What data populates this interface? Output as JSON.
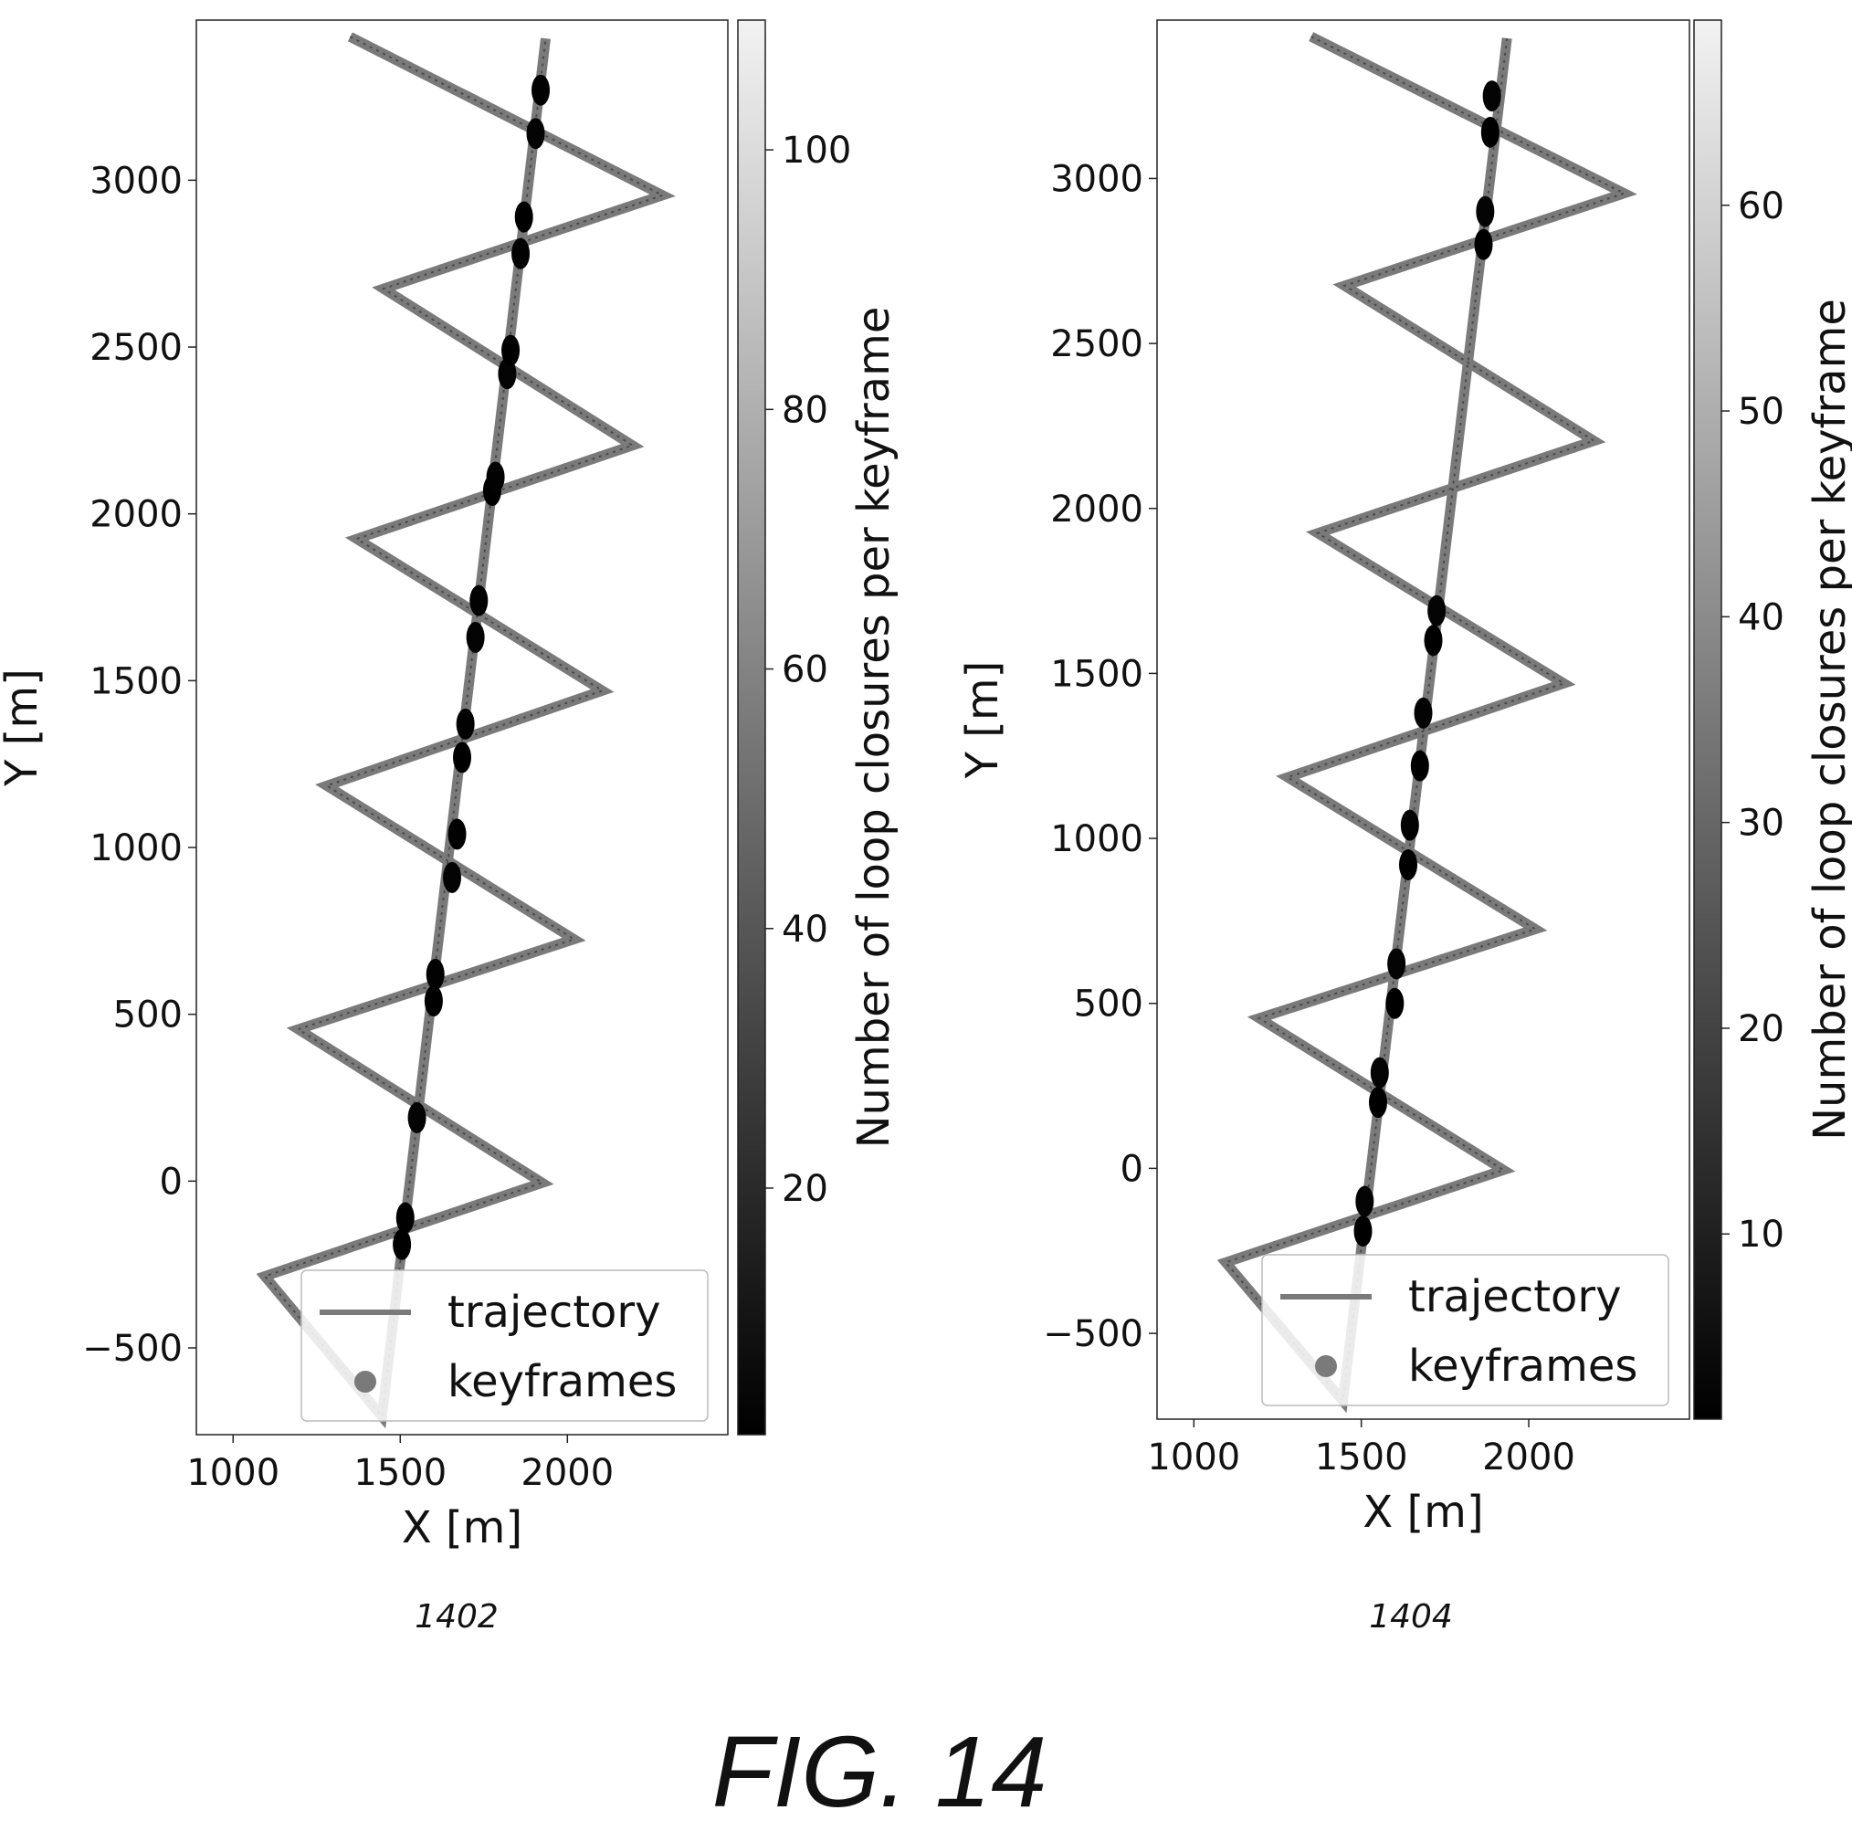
{
  "figure_caption": "FIG. 14",
  "chart_data": [
    {
      "type": "scatter",
      "panel_label": "1402",
      "xlabel": "X [m]",
      "ylabel": "Y [m]",
      "xlim": [
        890,
        2480
      ],
      "ylim": [
        -760,
        3480
      ],
      "xticks": [
        1000,
        1500,
        2000
      ],
      "xtick_labels": [
        "1000",
        "1500",
        "2000"
      ],
      "yticks": [
        -500,
        0,
        500,
        1000,
        1500,
        2000,
        2500,
        3000
      ],
      "ytick_labels": [
        "−500",
        "0",
        "500",
        "1000",
        "1500",
        "2000",
        "2500",
        "3000"
      ],
      "grid": false,
      "legend": {
        "placement": "lower-center",
        "entries": [
          "trajectory",
          "keyframes"
        ]
      },
      "colorbar": {
        "label": "Number of loop closures per keyframe",
        "range": [
          1,
          110
        ],
        "ticks": [
          20,
          40,
          60,
          80,
          100
        ],
        "tick_labels": [
          "20",
          "40",
          "60",
          "80",
          "100"
        ],
        "colormap": "gray"
      },
      "series": [
        {
          "name": "trajectory",
          "x": [
            1350,
            2285,
            1450,
            2195,
            1370,
            2105,
            1280,
            2020,
            1195,
            1925,
            1095,
            1445,
            1935
          ],
          "y": [
            3430,
            2955,
            2675,
            2205,
            1925,
            1470,
            1185,
            725,
            455,
            -5,
            -285,
            -705,
            3425
          ]
        },
        {
          "name": "keyframes",
          "x": [
            1505,
            1515,
            1550,
            1600,
            1605,
            1655,
            1670,
            1685,
            1695,
            1725,
            1735,
            1775,
            1785,
            1820,
            1830,
            1860,
            1870,
            1905,
            1920
          ],
          "y": [
            -190,
            -110,
            190,
            540,
            620,
            910,
            1040,
            1270,
            1370,
            1630,
            1740,
            2070,
            2110,
            2420,
            2490,
            2780,
            2890,
            3140,
            3270
          ],
          "color_value": [
            1,
            1,
            3,
            1,
            2,
            3,
            2,
            1,
            2,
            3,
            2,
            1,
            2,
            3,
            1,
            2,
            1,
            3,
            2
          ]
        }
      ]
    },
    {
      "type": "scatter",
      "panel_label": "1404",
      "xlabel": "X [m]",
      "ylabel": "Y [m]",
      "xlim": [
        890,
        2480
      ],
      "ylim": [
        -760,
        3480
      ],
      "xticks": [
        1000,
        1500,
        2000
      ],
      "xtick_labels": [
        "1000",
        "1500",
        "2000"
      ],
      "yticks": [
        -500,
        0,
        500,
        1000,
        1500,
        2000,
        2500,
        3000
      ],
      "ytick_labels": [
        "−500",
        "0",
        "500",
        "1000",
        "1500",
        "2000",
        "2500",
        "3000"
      ],
      "grid": false,
      "legend": {
        "placement": "lower-center",
        "entries": [
          "trajectory",
          "keyframes"
        ]
      },
      "colorbar": {
        "label": "Number of loop closures per keyframe",
        "range": [
          1,
          69
        ],
        "ticks": [
          10,
          20,
          30,
          40,
          50,
          60
        ],
        "tick_labels": [
          "10",
          "20",
          "30",
          "40",
          "50",
          "60"
        ],
        "colormap": "gray"
      },
      "series": [
        {
          "name": "trajectory",
          "x": [
            1350,
            2285,
            1450,
            2195,
            1370,
            2105,
            1280,
            2020,
            1195,
            1925,
            1095,
            1445,
            1935
          ],
          "y": [
            3430,
            2955,
            2675,
            2205,
            1925,
            1470,
            1185,
            725,
            455,
            -5,
            -285,
            -705,
            3425
          ]
        },
        {
          "name": "keyframes",
          "x": [
            1505,
            1510,
            1550,
            1555,
            1600,
            1605,
            1640,
            1645,
            1675,
            1685,
            1715,
            1725,
            1865,
            1870,
            1885,
            1890
          ],
          "y": [
            -190,
            -100,
            200,
            290,
            500,
            620,
            920,
            1040,
            1220,
            1380,
            1600,
            1690,
            2800,
            2900,
            3140,
            3250
          ],
          "color_value": [
            1,
            2,
            1,
            2,
            1,
            2,
            1,
            2,
            1,
            2,
            1,
            2,
            1,
            2,
            1,
            2
          ]
        }
      ]
    }
  ]
}
